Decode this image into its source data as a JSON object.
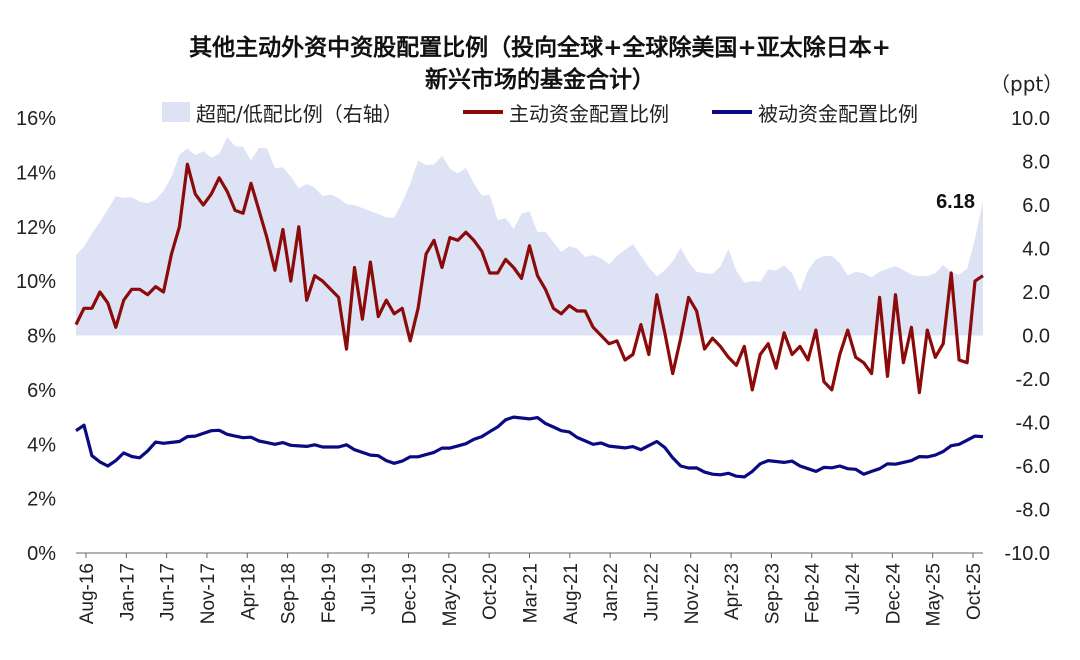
{
  "chart_data": {
    "type": "line",
    "title_line1": "其他主动外资中资股配置比例（投向全球+全球除美国+亚太除日本+",
    "title_line2": "新兴市场的基金合计）",
    "right_unit": "（ppt）",
    "legend": {
      "area": "超配/低配比例（右轴）",
      "active": "主动资金配置比例",
      "passive": "被动资金配置比例"
    },
    "colors": {
      "area": "#dde3f5",
      "active": "#8b0a0a",
      "passive": "#0a0a82"
    },
    "left_axis": {
      "min": 0,
      "max": 16,
      "ticks": [
        "0%",
        "2%",
        "4%",
        "6%",
        "8%",
        "10%",
        "12%",
        "14%",
        "16%"
      ]
    },
    "right_axis": {
      "min": -10,
      "max": 10,
      "ticks": [
        "-10.0",
        "-8.0",
        "-6.0",
        "-4.0",
        "-2.0",
        "0.0",
        "2.0",
        "4.0",
        "6.0",
        "8.0",
        "10.0"
      ]
    },
    "x_labels": [
      "Aug-16",
      "Jan-17",
      "Jun-17",
      "Nov-17",
      "Apr-18",
      "Sep-18",
      "Feb-19",
      "Jul-19",
      "Dec-19",
      "May-20",
      "Oct-20",
      "Mar-21",
      "Aug-21",
      "Jan-22",
      "Jun-22",
      "Nov-22",
      "Apr-23",
      "Sep-23",
      "Feb-24",
      "Jul-24",
      "Dec-24",
      "May-25",
      "Oct-25"
    ],
    "annotation": "6.18",
    "active": [
      8.4,
      9.0,
      9.0,
      9.6,
      9.2,
      8.3,
      9.3,
      9.7,
      9.7,
      9.5,
      9.8,
      9.6,
      11.0,
      12.0,
      14.3,
      13.2,
      12.8,
      13.2,
      13.8,
      13.3,
      12.6,
      12.5,
      13.6,
      12.6,
      11.6,
      10.4,
      11.9,
      10.0,
      12.0,
      9.3,
      10.2,
      10.0,
      9.7,
      9.4,
      7.5,
      10.5,
      8.6,
      10.7,
      8.7,
      9.3,
      8.8,
      9.0,
      7.8,
      9.0,
      11.0,
      11.5,
      10.5,
      11.6,
      11.5,
      11.8,
      11.5,
      11.1,
      10.3,
      10.3,
      10.8,
      10.5,
      10.1,
      11.3,
      10.2,
      9.7,
      9.0,
      8.8,
      9.1,
      8.9,
      8.9,
      8.3,
      8.0,
      7.7,
      7.8,
      7.1,
      7.3,
      8.4,
      7.3,
      9.5,
      8.1,
      6.6,
      7.9,
      9.4,
      8.9,
      7.5,
      7.9,
      7.6,
      7.2,
      6.9,
      7.6,
      6.0,
      7.3,
      7.7,
      6.8,
      8.1,
      7.3,
      7.6,
      7.1,
      8.2,
      6.3,
      6.0,
      7.3,
      8.2,
      7.2,
      7.0,
      6.6,
      9.4,
      6.5,
      9.5,
      7.0,
      8.3,
      5.9,
      8.2,
      7.2,
      7.7,
      10.3,
      7.1,
      7.0,
      10.0,
      10.2
    ]
  }
}
